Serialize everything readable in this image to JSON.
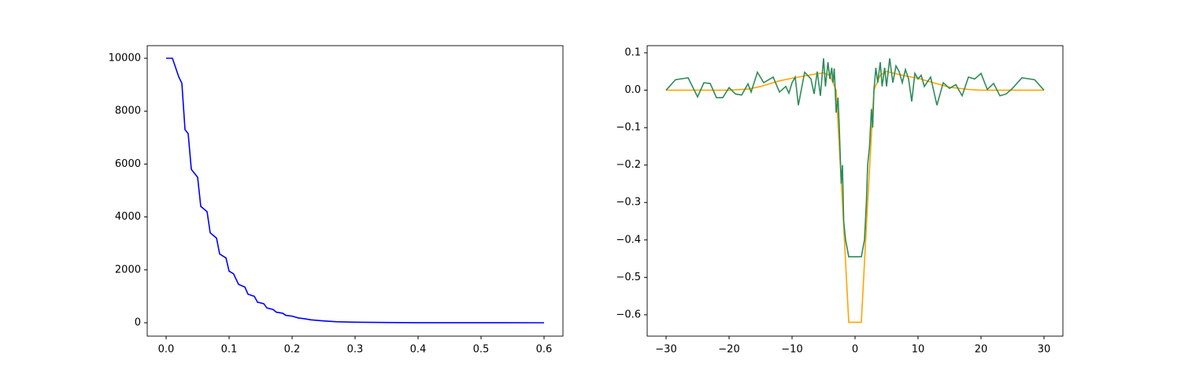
{
  "chart_data": [
    {
      "type": "line",
      "x": [
        0,
        0.01,
        0.02,
        0.025,
        0.03,
        0.035,
        0.04,
        0.05,
        0.055,
        0.065,
        0.07,
        0.08,
        0.085,
        0.095,
        0.1,
        0.107,
        0.115,
        0.125,
        0.13,
        0.14,
        0.145,
        0.155,
        0.16,
        0.17,
        0.175,
        0.185,
        0.19,
        0.2,
        0.21,
        0.22,
        0.23,
        0.25,
        0.27,
        0.3,
        0.35,
        0.4,
        0.5,
        0.6
      ],
      "series": [
        {
          "color": "#0000ff",
          "values": [
            10000,
            10000,
            9300,
            9050,
            7300,
            7150,
            5800,
            5500,
            4400,
            4200,
            3400,
            3200,
            2600,
            2450,
            1950,
            1850,
            1450,
            1350,
            1080,
            1000,
            780,
            720,
            560,
            500,
            400,
            360,
            280,
            250,
            180,
            150,
            110,
            70,
            40,
            20,
            8,
            3,
            1,
            0
          ]
        }
      ],
      "xlim": [
        -0.03,
        0.63
      ],
      "ylim": [
        -506,
        10476
      ],
      "xticks": [
        {
          "value": 0,
          "label": "0.0"
        },
        0.1,
        0.2,
        0.3,
        0.4,
        0.5,
        0.6
      ],
      "yticks": [
        0,
        2000,
        4000,
        6000,
        8000,
        10000
      ]
    },
    {
      "type": "line",
      "series": [
        {
          "color": "#ffa500",
          "x": [
            -30,
            -20,
            -17,
            -15,
            -12,
            -10,
            -8,
            -6,
            -5,
            -4,
            -3,
            -2,
            -1,
            1,
            2,
            3,
            4,
            5,
            6,
            8,
            10,
            12,
            15,
            18,
            20,
            30
          ],
          "values": [
            0,
            0,
            0.003,
            0.01,
            0.025,
            0.032,
            0.038,
            0.044,
            0.046,
            0.04,
            0,
            -0.3,
            -0.62,
            -0.62,
            -0.3,
            0,
            0.04,
            0.05,
            0.046,
            0.038,
            0.032,
            0.022,
            0.008,
            0.002,
            0,
            0
          ]
        },
        {
          "color": "#2e8b57",
          "x": [
            -30,
            -28.5,
            -26.5,
            -25,
            -24,
            -23,
            -22,
            -21,
            -20,
            -19,
            -18,
            -17,
            -16.5,
            -15.5,
            -14.5,
            -13,
            -12,
            -11,
            -10.5,
            -10,
            -9.5,
            -9,
            -8,
            -7,
            -6.5,
            -6,
            -5.5,
            -5,
            -4.7,
            -4.3,
            -4,
            -3.7,
            -3.5,
            -3.3,
            -3,
            -2.7,
            -2.5,
            -2.2,
            -2,
            -1.8,
            -1.5,
            -1,
            1,
            1.5,
            1.8,
            2,
            2.3,
            2.6,
            2.8,
            3,
            3.3,
            3.6,
            4,
            4.3,
            4.7,
            5,
            5.5,
            6,
            6.5,
            7,
            7.5,
            8,
            8.5,
            9,
            9.5,
            10,
            10.5,
            11,
            12,
            13,
            14,
            15,
            16,
            17,
            18,
            19,
            20,
            21,
            22,
            23,
            24,
            25,
            26.5,
            28.5,
            30
          ],
          "values": [
            0,
            0.028,
            0.033,
            -0.018,
            0.02,
            0.018,
            -0.02,
            -0.02,
            0.007,
            -0.01,
            -0.013,
            0.017,
            -0.005,
            0.048,
            0.02,
            0.035,
            -0.005,
            0.01,
            -0.008,
            0.02,
            0.035,
            -0.04,
            0.048,
            0.03,
            -0.01,
            0.05,
            -0.015,
            0.085,
            0.01,
            0.075,
            0.03,
            0.06,
            0.02,
            0.058,
            -0.06,
            -0.02,
            -0.1,
            -0.25,
            -0.2,
            -0.35,
            -0.4,
            -0.445,
            -0.445,
            -0.4,
            -0.3,
            -0.2,
            -0.15,
            -0.05,
            -0.1,
            0,
            0.06,
            0.02,
            0.075,
            0.01,
            0.06,
            0.01,
            0.085,
            0.02,
            0.065,
            0.05,
            0.02,
            0.055,
            0.03,
            -0.03,
            0.045,
            0.03,
            0.04,
            0.01,
            0.035,
            -0.04,
            0.02,
            0.005,
            0.015,
            -0.015,
            0.035,
            0.03,
            0.045,
            0.002,
            0.018,
            -0.015,
            -0.01,
            0.005,
            0.033,
            0.028,
            0
          ]
        }
      ],
      "xlim": [
        -33,
        33
      ],
      "ylim": [
        -0.657,
        0.119
      ],
      "xticks": [
        {
          "value": -30,
          "label": "−30"
        },
        {
          "value": -20,
          "label": "−20"
        },
        {
          "value": -10,
          "label": "−10"
        },
        0,
        10,
        20,
        30
      ],
      "yticks": [
        {
          "value": -0.6,
          "label": "−0.6"
        },
        {
          "value": -0.5,
          "label": "−0.5"
        },
        {
          "value": -0.4,
          "label": "−0.4"
        },
        {
          "value": -0.3,
          "label": "−0.3"
        },
        {
          "value": -0.2,
          "label": "−0.2"
        },
        {
          "value": -0.1,
          "label": "−0.1"
        },
        {
          "value": 0,
          "label": "0.0"
        },
        0.1
      ]
    }
  ]
}
